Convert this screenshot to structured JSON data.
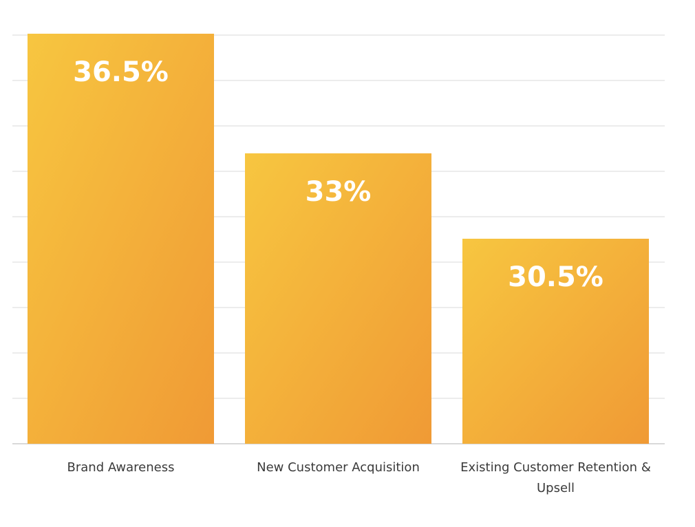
{
  "chart_data": {
    "type": "bar",
    "categories": [
      [
        "Brand Awareness"
      ],
      [
        "New Customer Acquisition"
      ],
      [
        "Existing Customer Retention &",
        "Upsell"
      ]
    ],
    "values": [
      36.5,
      33,
      30.5
    ],
    "value_labels": [
      "36.5%",
      "33%",
      "30.5%"
    ],
    "title": "",
    "xlabel": "",
    "ylabel": "",
    "ylim": [
      24.5,
      36.5
    ],
    "grid": true,
    "legend": "none"
  },
  "colors": {
    "bar_top": "#f7c640",
    "bar_bottom": "#f09a35",
    "value_label": "#ffffff",
    "category_label": "#3a3a3a",
    "grid": "#e6e6e6"
  }
}
